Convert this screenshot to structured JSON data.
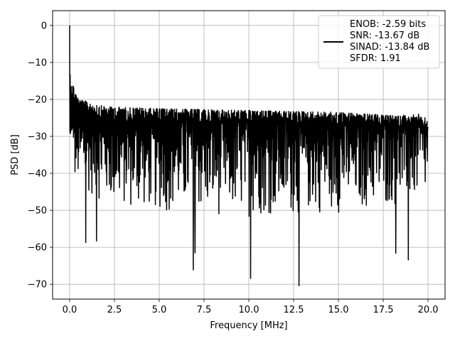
{
  "chart_data": {
    "type": "line",
    "xlabel": "Frequency [MHz]",
    "ylabel": "PSD [dB]",
    "xlim": [
      -0.95,
      20.95
    ],
    "ylim": [
      -74,
      4
    ],
    "xticks": [
      0.0,
      2.5,
      5.0,
      7.5,
      10.0,
      12.5,
      15.0,
      17.5,
      20.0
    ],
    "xtick_labels": [
      "0.0",
      "2.5",
      "5.0",
      "7.5",
      "10.0",
      "12.5",
      "15.0",
      "17.5",
      "20.0"
    ],
    "yticks": [
      0,
      -10,
      -20,
      -30,
      -40,
      -50,
      -60,
      -70
    ],
    "ytick_labels": [
      "0",
      "−10",
      "−20",
      "−30",
      "−40",
      "−50",
      "−60",
      "−70"
    ],
    "grid": true,
    "legend_position": "top-right",
    "series": [
      {
        "name": "ENOB: -2.59 bits\nSNR: -13.67 dB\nSINAD: -13.84 dB\nSFDR: 1.91",
        "color": "#000000",
        "peak": {
          "x": 0.0,
          "y": 0.0
        },
        "noise_band": {
          "x_start": 0.0,
          "x_end": 20.0,
          "upper_envelope": [
            [
              0.0,
              -10
            ],
            [
              0.1,
              -13
            ],
            [
              0.5,
              -18
            ],
            [
              2.0,
              -20
            ],
            [
              5.0,
              -20.5
            ],
            [
              10.0,
              -21
            ],
            [
              15.0,
              -21.5
            ],
            [
              20.0,
              -23
            ]
          ],
          "typical_high": -24,
          "typical_low": -44,
          "lower_envelope": [
            [
              0.0,
              -43
            ],
            [
              2.5,
              -50
            ],
            [
              7.5,
              -52
            ],
            [
              12.5,
              -52
            ],
            [
              17.5,
              -50
            ],
            [
              20.0,
              -48
            ]
          ]
        },
        "notable_dips": [
          {
            "x": 0.9,
            "y": -58.7
          },
          {
            "x": 1.5,
            "y": -58.3
          },
          {
            "x": 6.9,
            "y": -66.1
          },
          {
            "x": 7.0,
            "y": -61.5
          },
          {
            "x": 10.1,
            "y": -68.4
          },
          {
            "x": 12.8,
            "y": -70.4
          },
          {
            "x": 18.2,
            "y": -61.6
          },
          {
            "x": 18.9,
            "y": -63.4
          }
        ]
      }
    ],
    "legend_lines": [
      "ENOB: -2.59 bits",
      "SNR: -13.67 dB",
      "SINAD: -13.84 dB",
      "SFDR: 1.91"
    ]
  }
}
